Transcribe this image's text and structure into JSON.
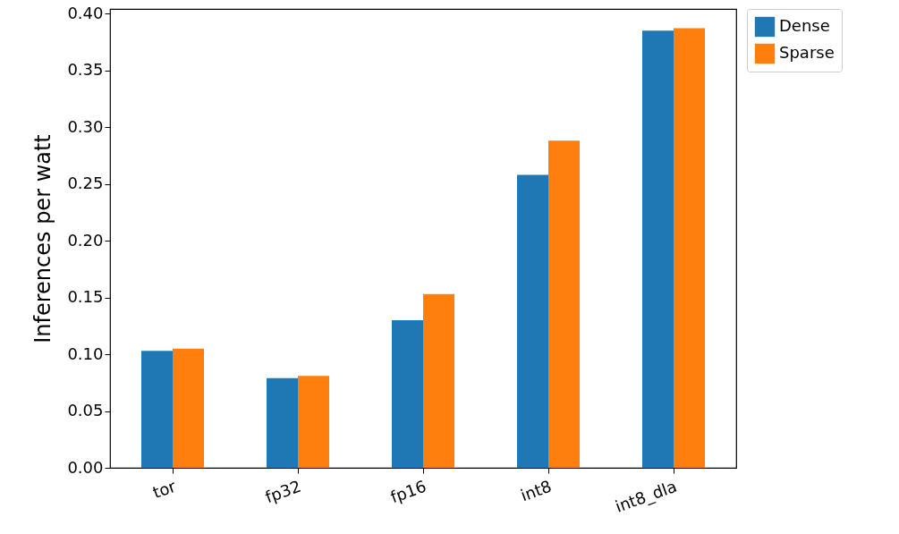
{
  "chart_data": {
    "type": "bar",
    "ylabel": "Inferences per watt",
    "categories": [
      "tor",
      "fp32",
      "fp16",
      "int8",
      "int8_dla"
    ],
    "series": [
      {
        "name": "Dense",
        "color": "#1f77b4",
        "values": [
          0.103,
          0.079,
          0.13,
          0.258,
          0.385
        ]
      },
      {
        "name": "Sparse",
        "color": "#ff7f0e",
        "values": [
          0.105,
          0.081,
          0.153,
          0.288,
          0.387
        ]
      }
    ],
    "ylim": [
      0,
      0.404
    ],
    "yticks": [
      {
        "value": 0,
        "label": "0.00"
      },
      0.05,
      {
        "value": 0.1,
        "label": "0.10"
      },
      0.15,
      {
        "value": 0.2,
        "label": "0.20"
      },
      0.25,
      {
        "value": 0.3,
        "label": "0.30"
      },
      0.35,
      {
        "value": 0.4,
        "label": "0.40"
      }
    ],
    "grid": false,
    "legend": "right"
  }
}
